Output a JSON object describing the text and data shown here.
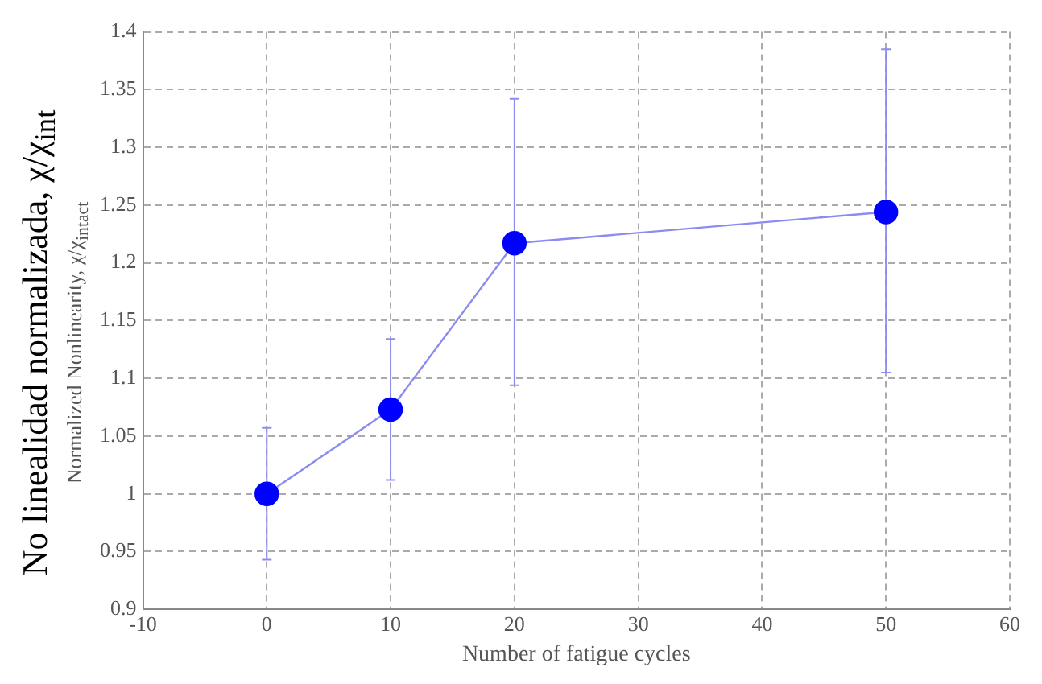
{
  "chart_data": {
    "type": "line",
    "xlabel": "Number of fatigue cycles",
    "ylabel": "No linealidad normalizada, χ/χ$_{int}$",
    "annotations": [
      "Normalized Nonlinearity, χ/χ$_{intact}$"
    ],
    "x": [
      0,
      10,
      20,
      50
    ],
    "series": [
      {
        "color": "#0000ff",
        "values": [
          1.0,
          1.073,
          1.217,
          1.244
        ],
        "errors": [
          [
            0.943,
            1.057
          ],
          [
            1.012,
            1.134
          ],
          [
            1.094,
            1.342
          ],
          [
            1.105,
            1.385
          ]
        ]
      }
    ],
    "xlim": [
      -10,
      60
    ],
    "xticks": [
      -10,
      0,
      10,
      20,
      30,
      40,
      50,
      60
    ],
    "ylim": [
      0.9,
      1.4
    ],
    "yticks": [
      0.9,
      0.95,
      1,
      1.05,
      1.1,
      1.15,
      1.2,
      1.25,
      1.3,
      1.35,
      1.4
    ],
    "grid": true,
    "marker": "circle",
    "line_style": "solid",
    "legend": false
  }
}
